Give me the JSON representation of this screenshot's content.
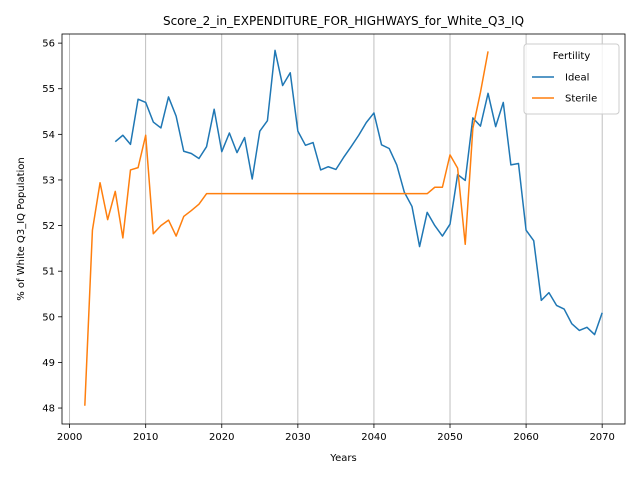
{
  "chart_data": {
    "type": "line",
    "title": "Score_2_in_EXPENDITURE_FOR_HIGHWAYS_for_White_Q3_IQ",
    "xlabel": "Years",
    "ylabel": "% of White Q3_IQ Population",
    "xlim": [
      1999,
      2073
    ],
    "ylim": [
      47.65,
      56.2
    ],
    "xticks": [
      2000,
      2010,
      2020,
      2030,
      2040,
      2050,
      2060,
      2070
    ],
    "yticks": [
      48,
      49,
      50,
      51,
      52,
      53,
      54,
      55,
      56
    ],
    "grid": "vertical",
    "legend": {
      "title": "Fertility",
      "position": "top-right"
    },
    "series": [
      {
        "name": "Ideal",
        "color": "#1f77b4",
        "x": [
          2006,
          2007,
          2008,
          2009,
          2010,
          2011,
          2012,
          2013,
          2014,
          2015,
          2016,
          2017,
          2018,
          2019,
          2020,
          2021,
          2022,
          2023,
          2024,
          2025,
          2026,
          2027,
          2028,
          2029,
          2030,
          2031,
          2032,
          2033,
          2034,
          2035,
          2036,
          2037,
          2038,
          2039,
          2040,
          2041,
          2042,
          2043,
          2044,
          2045,
          2046,
          2047,
          2048,
          2049,
          2050,
          2051,
          2052,
          2053,
          2054,
          2055,
          2056,
          2057,
          2058,
          2059,
          2060,
          2061,
          2062,
          2063,
          2064,
          2065,
          2066,
          2067,
          2068,
          2069,
          2070
        ],
        "values": [
          53.84,
          53.98,
          53.78,
          54.77,
          54.7,
          54.27,
          54.14,
          54.82,
          54.4,
          53.63,
          53.58,
          53.47,
          53.73,
          54.55,
          53.62,
          54.03,
          53.6,
          53.93,
          53.02,
          54.07,
          54.3,
          55.84,
          55.07,
          55.35,
          54.07,
          53.76,
          53.82,
          53.22,
          53.29,
          53.23,
          53.49,
          53.73,
          53.98,
          54.26,
          54.47,
          53.77,
          53.69,
          53.33,
          52.73,
          52.42,
          51.54,
          52.29,
          52.0,
          51.77,
          52.03,
          53.12,
          52.99,
          54.36,
          54.18,
          54.9,
          54.17,
          54.7,
          53.33,
          53.36,
          51.9,
          51.67,
          50.36,
          50.53,
          50.25,
          50.17,
          49.85,
          49.7,
          49.77,
          49.61,
          50.09
        ]
      },
      {
        "name": "Sterile",
        "color": "#ff7f0e",
        "x": [
          2002,
          2003,
          2004,
          2005,
          2006,
          2007,
          2008,
          2009,
          2010,
          2011,
          2012,
          2013,
          2014,
          2015,
          2016,
          2017,
          2018,
          2019,
          2020,
          2021,
          2022,
          2023,
          2024,
          2025,
          2026,
          2027,
          2028,
          2029,
          2030,
          2031,
          2032,
          2033,
          2034,
          2035,
          2036,
          2037,
          2038,
          2039,
          2040,
          2041,
          2042,
          2043,
          2044,
          2045,
          2046,
          2047,
          2048,
          2049,
          2050,
          2051,
          2052,
          2053,
          2054,
          2055
        ],
        "values": [
          48.05,
          51.9,
          52.94,
          52.13,
          52.75,
          51.73,
          53.22,
          53.27,
          53.98,
          51.82,
          52.0,
          52.12,
          51.77,
          52.2,
          52.33,
          52.47,
          52.7,
          52.7,
          52.7,
          52.7,
          52.7,
          52.7,
          52.7,
          52.7,
          52.7,
          52.7,
          52.7,
          52.7,
          52.7,
          52.7,
          52.7,
          52.7,
          52.7,
          52.7,
          52.7,
          52.7,
          52.7,
          52.7,
          52.7,
          52.7,
          52.7,
          52.7,
          52.7,
          52.7,
          52.7,
          52.7,
          52.84,
          52.84,
          53.55,
          53.26,
          51.59,
          54.13,
          54.92,
          55.82
        ]
      }
    ]
  }
}
